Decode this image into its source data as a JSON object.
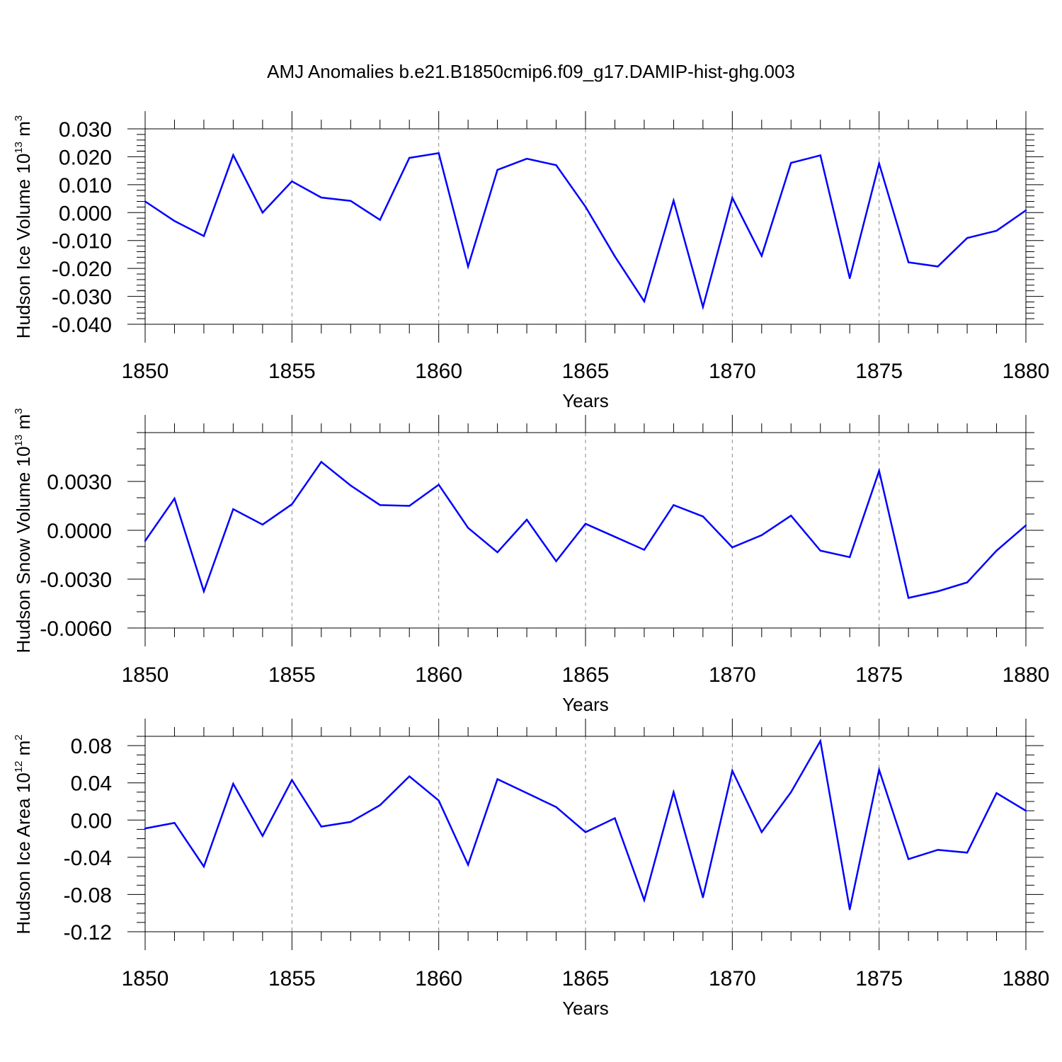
{
  "figure": {
    "title": "AMJ Anomalies b.e21.B1850cmip6.f09_g17.DAMIP-hist-ghg.003",
    "line_color": "#0000ff"
  },
  "chart_data": [
    {
      "type": "line",
      "name": "ice-volume",
      "title": "AMJ Anomalies b.e21.B1850cmip6.f09_g17.DAMIP-hist-ghg.003",
      "xlabel": "Years",
      "ylabel": {
        "text": "Hudson Ice Volume 10",
        "exp": "13",
        "unit": " m",
        "unit_exp": "3"
      },
      "xlim": [
        1850,
        1880
      ],
      "ylim": [
        -0.04,
        0.03
      ],
      "x_ticks": [
        1850,
        1855,
        1860,
        1865,
        1870,
        1875,
        1880
      ],
      "x_tick_labels": [
        "1850",
        "1855",
        "1860",
        "1865",
        "1870",
        "1875",
        "1880"
      ],
      "y_ticks": [
        -0.04,
        -0.03,
        -0.02,
        -0.01,
        0.0,
        0.01,
        0.02,
        0.03
      ],
      "y_tick_labels": [
        "-0.040",
        "-0.030",
        "-0.020",
        "-0.010",
        "0.000",
        "0.010",
        "0.020",
        "0.030"
      ],
      "y_minor_step": 0.002,
      "x": [
        1850,
        1851,
        1852,
        1853,
        1854,
        1855,
        1856,
        1857,
        1858,
        1859,
        1860,
        1861,
        1862,
        1863,
        1864,
        1865,
        1866,
        1867,
        1868,
        1869,
        1870,
        1871,
        1872,
        1873,
        1874,
        1875,
        1876,
        1877,
        1878,
        1879,
        1880
      ],
      "series": [
        {
          "name": "Hudson Ice Volume",
          "values": [
            0.004,
            -0.003,
            -0.0084,
            0.0206,
            0.0,
            0.0112,
            0.0054,
            0.0042,
            -0.0026,
            0.0196,
            0.0213,
            -0.0193,
            0.0153,
            0.0193,
            0.017,
            0.0021,
            -0.0157,
            -0.0318,
            0.0043,
            -0.0338,
            0.0053,
            -0.0155,
            0.0178,
            0.0205,
            -0.0235,
            0.0176,
            -0.0178,
            -0.0193,
            -0.0091,
            -0.0065,
            0.0008
          ]
        }
      ]
    },
    {
      "type": "line",
      "name": "snow-volume",
      "xlabel": "Years",
      "ylabel": {
        "text": "Hudson Snow Volume 10",
        "exp": "13",
        "unit": " m",
        "unit_exp": "3"
      },
      "xlim": [
        1850,
        1880
      ],
      "ylim": [
        -0.006,
        0.006
      ],
      "x_ticks": [
        1850,
        1855,
        1860,
        1865,
        1870,
        1875,
        1880
      ],
      "x_tick_labels": [
        "1850",
        "1855",
        "1860",
        "1865",
        "1870",
        "1875",
        "1880"
      ],
      "y_ticks": [
        -0.006,
        -0.003,
        0.0,
        0.003
      ],
      "y_tick_labels": [
        "-0.0060",
        "-0.0030",
        "0.0000",
        "0.0030"
      ],
      "y_minor_step": 0.001,
      "x": [
        1850,
        1851,
        1852,
        1853,
        1854,
        1855,
        1856,
        1857,
        1858,
        1859,
        1860,
        1861,
        1862,
        1863,
        1864,
        1865,
        1866,
        1867,
        1868,
        1869,
        1870,
        1871,
        1872,
        1873,
        1874,
        1875,
        1876,
        1877,
        1878,
        1879,
        1880
      ],
      "series": [
        {
          "name": "Hudson Snow Volume",
          "values": [
            -0.00065,
            0.00195,
            -0.00375,
            0.0013,
            0.00035,
            0.0016,
            0.0042,
            0.00275,
            0.00155,
            0.0015,
            0.0028,
            0.00015,
            -0.00135,
            0.00065,
            -0.0019,
            0.0004,
            -0.0004,
            -0.0012,
            0.00155,
            0.00085,
            -0.00105,
            -0.0003,
            0.0009,
            -0.00125,
            -0.00165,
            0.00365,
            -0.00415,
            -0.00375,
            -0.0032,
            -0.00125,
            0.0003
          ]
        }
      ]
    },
    {
      "type": "line",
      "name": "ice-area",
      "xlabel": "Years",
      "ylabel": {
        "text": "Hudson Ice Area 10",
        "exp": "12",
        "unit": " m",
        "unit_exp": "2"
      },
      "xlim": [
        1850,
        1880
      ],
      "ylim": [
        -0.12,
        0.09
      ],
      "x_ticks": [
        1850,
        1855,
        1860,
        1865,
        1870,
        1875,
        1880
      ],
      "x_tick_labels": [
        "1850",
        "1855",
        "1860",
        "1865",
        "1870",
        "1875",
        "1880"
      ],
      "y_ticks": [
        -0.12,
        -0.08,
        -0.04,
        0.0,
        0.04,
        0.08
      ],
      "y_tick_labels": [
        "-0.12",
        "-0.08",
        "-0.04",
        "0.00",
        "0.04",
        "0.08"
      ],
      "y_minor_step": 0.01,
      "x": [
        1850,
        1851,
        1852,
        1853,
        1854,
        1855,
        1856,
        1857,
        1858,
        1859,
        1860,
        1861,
        1862,
        1863,
        1864,
        1865,
        1866,
        1867,
        1868,
        1869,
        1870,
        1871,
        1872,
        1873,
        1874,
        1875,
        1876,
        1877,
        1878,
        1879,
        1880
      ],
      "series": [
        {
          "name": "Hudson Ice Area",
          "values": [
            -0.009,
            -0.003,
            -0.05,
            0.039,
            -0.017,
            0.043,
            -0.007,
            -0.002,
            0.016,
            0.047,
            0.021,
            -0.048,
            0.044,
            0.029,
            0.014,
            -0.013,
            0.002,
            -0.086,
            0.03,
            -0.083,
            0.053,
            -0.013,
            0.03,
            0.085,
            -0.096,
            0.054,
            -0.042,
            -0.032,
            -0.035,
            0.029,
            0.01
          ]
        }
      ]
    }
  ]
}
